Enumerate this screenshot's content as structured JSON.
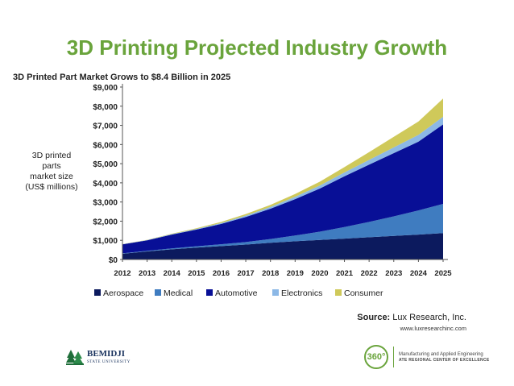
{
  "slide": {
    "title": "3D Printing Projected Industry Growth"
  },
  "chart_data": {
    "type": "area",
    "stacked": true,
    "title": "3D Printed Part Market Grows to $8.4 Billion in 2025",
    "ylabel_lines": [
      "3D printed",
      "parts",
      "market size",
      "(US$ millions)"
    ],
    "x": [
      "2012",
      "2013",
      "2014",
      "2015",
      "2016",
      "2017",
      "2018",
      "2019",
      "2020",
      "2021",
      "2022",
      "2023",
      "2024",
      "2025"
    ],
    "ylim": [
      0,
      9000
    ],
    "yticks": [
      0,
      1000,
      2000,
      3000,
      4000,
      5000,
      6000,
      7000,
      8000,
      9000
    ],
    "ytick_labels": [
      "$0",
      "$1,000",
      "$2,000",
      "$3,000",
      "$4,000",
      "$5,000",
      "$6,000",
      "$7,000",
      "$8,000",
      "$9,000"
    ],
    "grid": false,
    "legend_position": "bottom",
    "series": [
      {
        "name": "Aerospace",
        "color": "#0c1a5e",
        "values": [
          300,
          420,
          530,
          620,
          700,
          780,
          870,
          950,
          1020,
          1090,
          1160,
          1230,
          1300,
          1380
        ]
      },
      {
        "name": "Medical",
        "color": "#3f7cc0",
        "values": [
          20,
          35,
          50,
          70,
          95,
          130,
          200,
          300,
          430,
          600,
          800,
          1020,
          1260,
          1520
        ]
      },
      {
        "name": "Automotive",
        "color": "#080f96",
        "values": [
          470,
          545,
          720,
          870,
          1060,
          1310,
          1580,
          1900,
          2250,
          2650,
          2990,
          3300,
          3590,
          4150
        ]
      },
      {
        "name": "Electronics",
        "color": "#8cb8e6",
        "values": [
          10,
          15,
          25,
          35,
          50,
          70,
          90,
          120,
          160,
          200,
          250,
          300,
          350,
          400
        ]
      },
      {
        "name": "Consumer",
        "color": "#cfc95a",
        "values": [
          5,
          10,
          20,
          35,
          55,
          80,
          110,
          150,
          200,
          280,
          400,
          550,
          700,
          950
        ]
      }
    ],
    "source_label": "Source:",
    "source_text": "Lux Research, Inc.",
    "source_url": "www.luxresearchinc.com"
  },
  "footer": {
    "left_logo": {
      "name": "BEMIDJI",
      "subtitle": "STATE UNIVERSITY"
    },
    "right_logo": {
      "mark": "360°",
      "line1": "Manufacturing and Applied Engineering",
      "line2": "ATE REGIONAL CENTER OF EXCELLENCE"
    }
  }
}
